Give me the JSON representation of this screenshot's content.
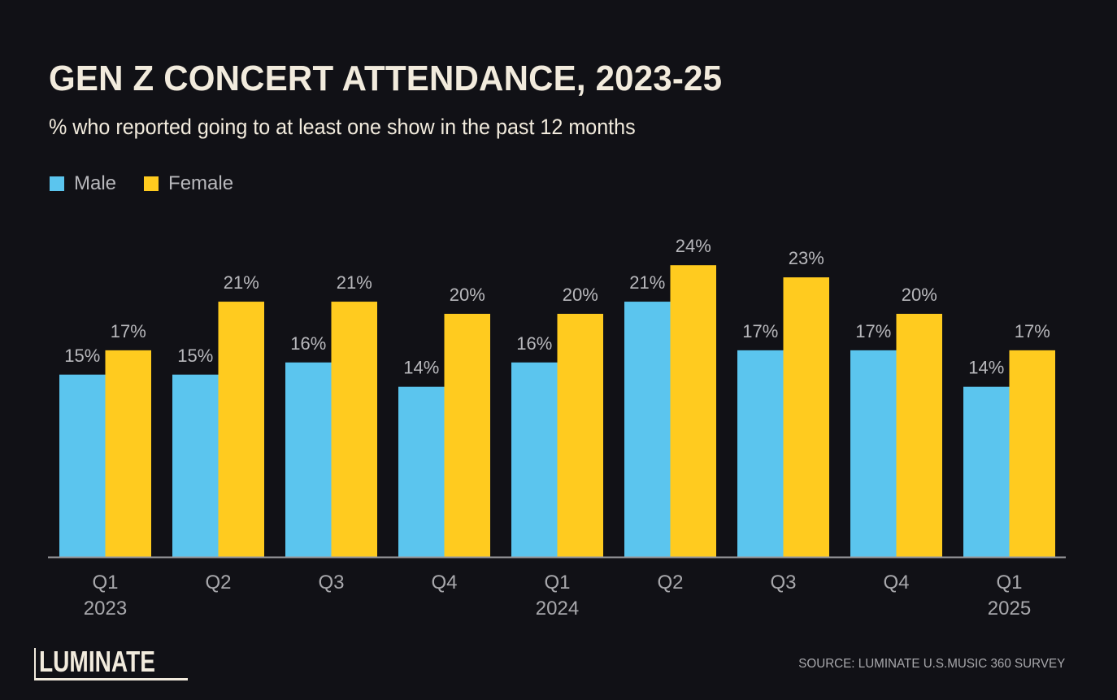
{
  "colors": {
    "background": "#111116",
    "male": "#5BC5EE",
    "female": "#FFCB1F",
    "title": "#F2EBDD",
    "label": "#B8B8BC",
    "axis": "#9A9A9E"
  },
  "legend": {
    "items": [
      {
        "name": "Male",
        "color": "#5BC5EE"
      },
      {
        "name": "Female",
        "color": "#FFCB1F"
      }
    ]
  },
  "footer": {
    "logo": "LUMINATE",
    "source": "SOURCE: LUMINATE U.S.MUSIC 360 SURVEY"
  },
  "chart_data": {
    "type": "bar",
    "title": "GEN Z CONCERT ATTENDANCE, 2023-25",
    "subtitle": "% who reported going to at least one show in the past 12 months",
    "xlabel": "",
    "ylabel": "",
    "ylim": [
      0,
      25
    ],
    "grid": false,
    "legend_position": "top-left",
    "categories": [
      {
        "quarter": "Q1",
        "year": "2023"
      },
      {
        "quarter": "Q2",
        "year": ""
      },
      {
        "quarter": "Q3",
        "year": ""
      },
      {
        "quarter": "Q4",
        "year": ""
      },
      {
        "quarter": "Q1",
        "year": "2024"
      },
      {
        "quarter": "Q2",
        "year": ""
      },
      {
        "quarter": "Q3",
        "year": ""
      },
      {
        "quarter": "Q4",
        "year": ""
      },
      {
        "quarter": "Q1",
        "year": "2025"
      }
    ],
    "series": [
      {
        "name": "Male",
        "values": [
          15,
          15,
          16,
          14,
          16,
          21,
          17,
          17,
          14
        ]
      },
      {
        "name": "Female",
        "values": [
          17,
          21,
          21,
          20,
          20,
          24,
          23,
          20,
          17
        ]
      }
    ],
    "value_suffix": "%"
  }
}
